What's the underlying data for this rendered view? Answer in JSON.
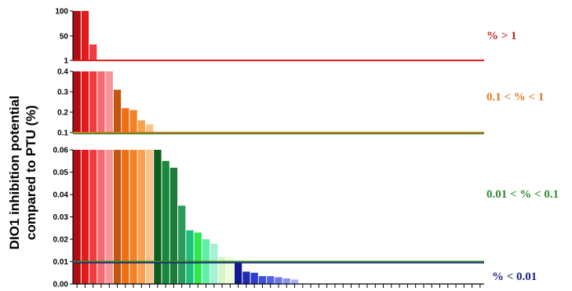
{
  "chart_data": {
    "type": "bar",
    "ylabel_line1": "DIO1 inhibition potential",
    "ylabel_line2": "compared to PTU (%)",
    "colors": {
      "reds": "#d9262b",
      "oranges": "#f07d1a",
      "greens": "#2e8b2e",
      "blues": "#1a237e"
    },
    "panels": [
      {
        "id": "top",
        "label": "% > 1",
        "label_color": "#cc2222",
        "ylim": [
          1,
          100
        ],
        "ticks": [
          "100",
          "50",
          "1"
        ],
        "tick_values": [
          100,
          50,
          1
        ],
        "threshold": 1,
        "threshold_color": "#e02020"
      },
      {
        "id": "mid",
        "label": "0.1 < % < 1",
        "label_color": "#e07820",
        "ylim": [
          0.1,
          0.4
        ],
        "ticks": [
          "0.4",
          "0.3",
          "0.2",
          "0.1"
        ],
        "tick_values": [
          0.4,
          0.3,
          0.2,
          0.1
        ],
        "threshold": 0.1,
        "threshold_color": "#e07820"
      },
      {
        "id": "bottom",
        "label": "0.01 < % < 0.1",
        "label_color": "#2e8b2e",
        "ylim": [
          0,
          0.06
        ],
        "ticks": [
          "0.06",
          "0.05",
          "0.04",
          "0.03",
          "0.02",
          "0.01",
          "0.00"
        ],
        "tick_values": [
          0.06,
          0.05,
          0.04,
          0.03,
          0.02,
          0.01,
          0.0
        ],
        "threshold": 0.01,
        "threshold_color": "#2e8b2e"
      }
    ],
    "bottom_label": "% < 0.01",
    "bottom_label_color": "#1a237e",
    "bottom_threshold_color": "#1a237e",
    "category_count": 51,
    "bars": [
      {
        "value": 100,
        "color": "#b00d14"
      },
      {
        "value": 100,
        "color": "#e31a1c"
      },
      {
        "value": 33,
        "color": "#f03b3f"
      },
      {
        "value": 2,
        "color": "#f46a6d"
      },
      {
        "value": 0.4,
        "color": "#f7969a"
      },
      {
        "value": 0.31,
        "color": "#c2570f"
      },
      {
        "value": 0.22,
        "color": "#ef6f12"
      },
      {
        "value": 0.21,
        "color": "#f58222"
      },
      {
        "value": 0.16,
        "color": "#f9a14e"
      },
      {
        "value": 0.14,
        "color": "#fbc28a"
      },
      {
        "value": 0.06,
        "color": "#0d5e1f"
      },
      {
        "value": 0.055,
        "color": "#138a3c"
      },
      {
        "value": 0.052,
        "color": "#1e7b3a"
      },
      {
        "value": 0.035,
        "color": "#2a9b59"
      },
      {
        "value": 0.024,
        "color": "#1fbf7a"
      },
      {
        "value": 0.023,
        "color": "#2ee84c"
      },
      {
        "value": 0.02,
        "color": "#5ff0a8"
      },
      {
        "value": 0.018,
        "color": "#a4f2d2"
      },
      {
        "value": 0.012,
        "color": "#d6f5c8"
      },
      {
        "value": 0.012,
        "color": "#eefad8"
      },
      {
        "value": 0.01,
        "color": "#101a8c"
      },
      {
        "value": 0.0055,
        "color": "#1f2bb0"
      },
      {
        "value": 0.005,
        "color": "#2d3bd0"
      },
      {
        "value": 0.0035,
        "color": "#3e4ee0"
      },
      {
        "value": 0.0035,
        "color": "#5362e6"
      },
      {
        "value": 0.003,
        "color": "#6a78ec"
      },
      {
        "value": 0.0025,
        "color": "#8a96f0"
      },
      {
        "value": 0.002,
        "color": "#aab3f5"
      }
    ]
  }
}
